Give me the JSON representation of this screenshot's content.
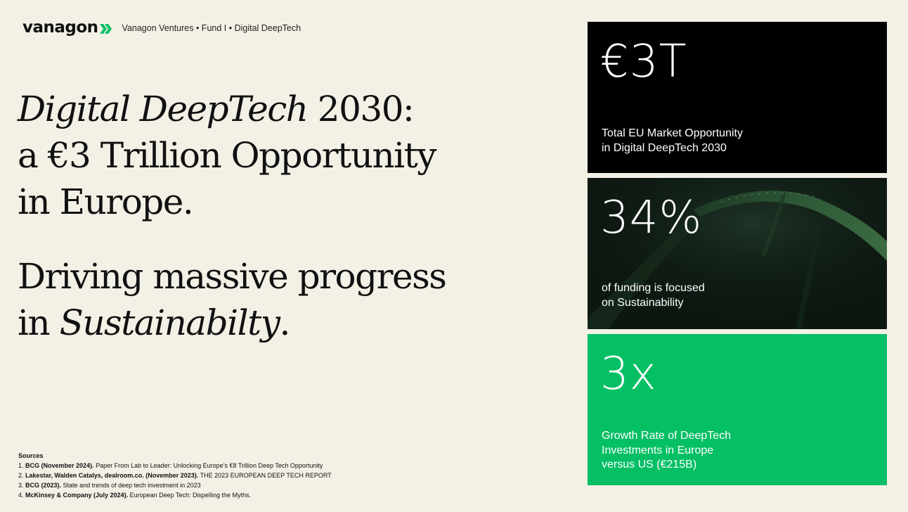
{
  "brand": {
    "logo_text": "vanagon",
    "tagline": "Vanagon Ventures • Fund I • Digital DeepTech",
    "accent_color": "#05bf64"
  },
  "headline": {
    "l1_italic": "Digital DeepTech",
    "l1_rest": " 2030:",
    "l2": "a €3 Trillion Opportunity",
    "l3": "in Europe.",
    "l4": "Driving massive progress",
    "l5_pre": "in ",
    "l5_italic": "Sustainabilty",
    "l5_post": "."
  },
  "sources": {
    "title": "Sources",
    "items": [
      {
        "num": "1. ",
        "bold": "BCG (November 2024).",
        "text": " Paper From Lab to Leader: Unlocking Europe’s €8 Trillion Deep Tech Opportunity"
      },
      {
        "num": "2. ",
        "bold": "Lakestar, Walden Catalys, dealroom.co. (November 2023).",
        "text": " THE 2023 EUROPEAN DEEP TECH REPORT"
      },
      {
        "num": "3. ",
        "bold": "BCG (2023).",
        "text": " State and trends of deep tech investment in 2023"
      },
      {
        "num": "4. ",
        "bold": "McKinsey & Company (July 2024).",
        "text": " European Deep Tech: Dispelling the Myths."
      }
    ]
  },
  "stats": [
    {
      "value": "€3T",
      "l1": "Total EU Market Opportunity",
      "l2": "in Digital DeepTech 2030",
      "l3": "",
      "bg": "#000000"
    },
    {
      "value": "34%",
      "l1": "of funding is focused",
      "l2": "on Sustainability",
      "l3": "",
      "bg": "#0d1a12"
    },
    {
      "value": "3x",
      "l1": "Growth Rate of DeepTech",
      "l2": "Investments in Europe",
      "l3": "versus US (€215B)",
      "bg": "#05bf64"
    }
  ]
}
